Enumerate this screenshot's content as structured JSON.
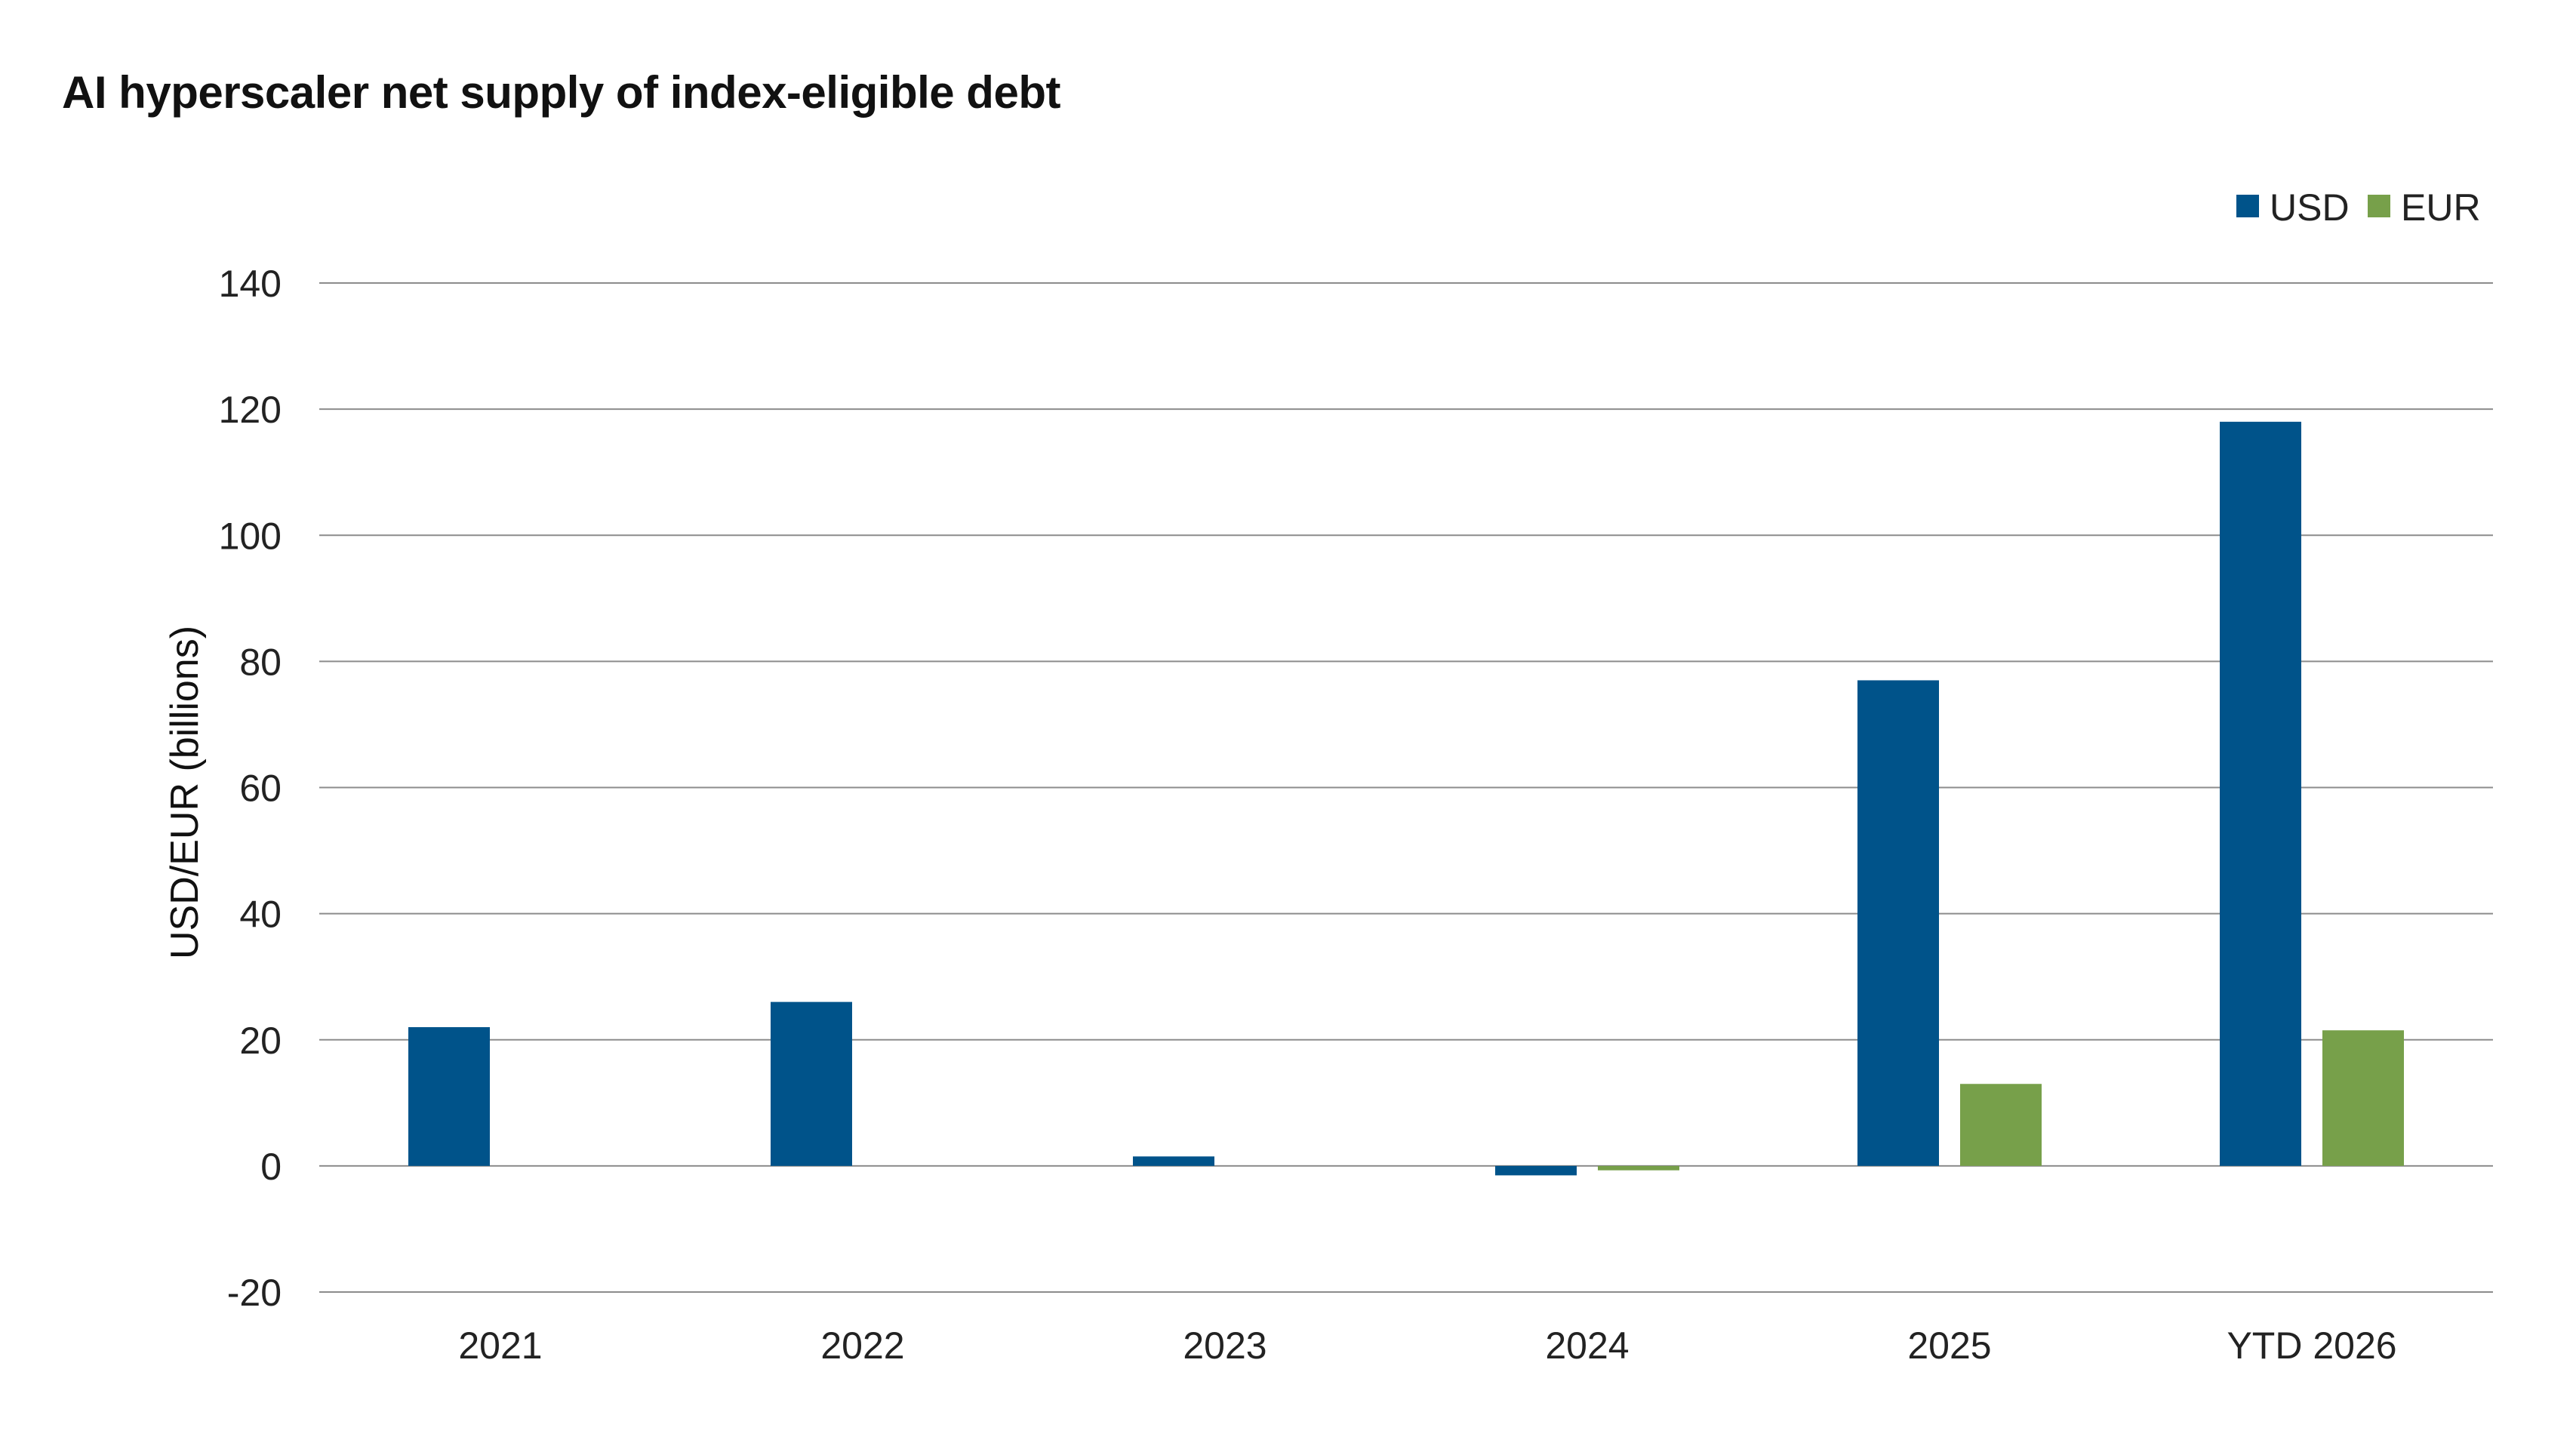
{
  "chart_data": {
    "type": "bar",
    "title": "AI hyperscaler net supply of index-eligible debt",
    "xlabel": "",
    "ylabel": "USD/EUR (billions)",
    "categories": [
      "2021",
      "2022",
      "2023",
      "2024",
      "2025",
      "YTD 2026"
    ],
    "series": [
      {
        "name": "USD",
        "color": "#00538a",
        "values": [
          22,
          26,
          1.5,
          -1.5,
          77,
          118
        ]
      },
      {
        "name": "EUR",
        "color": "#77a04a",
        "values": [
          0,
          0,
          0,
          -0.7,
          13,
          21.5
        ]
      }
    ],
    "ylim": [
      -20,
      140
    ],
    "yticks": [
      -20,
      0,
      20,
      40,
      60,
      80,
      100,
      120,
      140
    ],
    "ytick_labels": [
      "-20",
      "0",
      "20",
      "40",
      "60",
      "80",
      "100",
      "120",
      "140"
    ],
    "grid": true,
    "legend_position": "top-right"
  }
}
